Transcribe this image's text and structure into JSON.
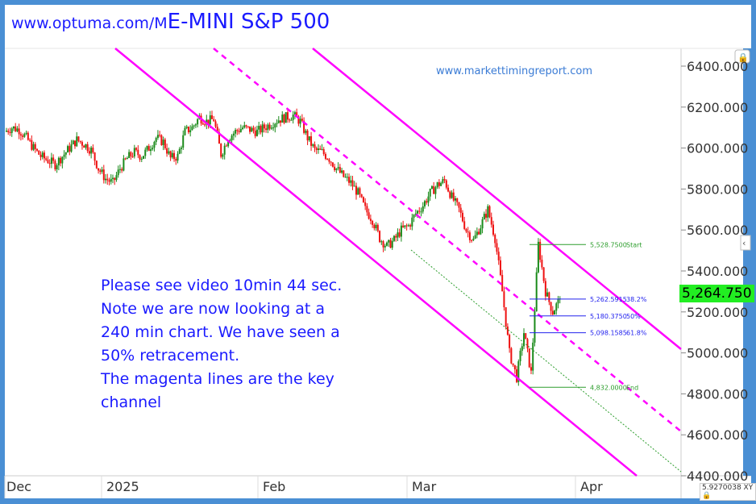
{
  "header": {
    "url": "www.optuma.com/M",
    "title": "E-MINI S&P 500"
  },
  "watermark": "www.markettimingreport.com",
  "note": [
    "Please see video 10min 44 sec.",
    "Note we are now looking at a",
    "240 min chart. We have seen a",
    "50% retracement.",
    "The magenta lines are the key",
    "channel"
  ],
  "current_price": "5,264.750",
  "coord_readout": "5.9270038",
  "coord_mode": "XY",
  "chart_data": {
    "type": "candlestick",
    "y_ticks": [
      "6400.000",
      "6200.000",
      "6000.000",
      "5800.000",
      "5600.000",
      "5400.000",
      "5200.000",
      "5000.000",
      "4800.000",
      "4600.000",
      "4400.000"
    ],
    "ylim": [
      4400,
      6400
    ],
    "x_ticks": [
      "Dec",
      "2025",
      "Feb",
      "Mar",
      "Apr"
    ],
    "closes": [
      6080,
      6100,
      6090,
      6050,
      6000,
      5960,
      5940,
      5920,
      5960,
      6000,
      6040,
      6020,
      5990,
      5900,
      5850,
      5830,
      5900,
      5950,
      5980,
      5960,
      6000,
      6050,
      6030,
      5950,
      5960,
      6080,
      6100,
      6150,
      6130,
      6140,
      5970,
      6050,
      6080,
      6100,
      6090,
      6080,
      6100,
      6120,
      6140,
      6150,
      6160,
      6130,
      6050,
      5990,
      5980,
      5950,
      5900,
      5860,
      5830,
      5780,
      5700,
      5650,
      5560,
      5520,
      5550,
      5600,
      5620,
      5680,
      5720,
      5780,
      5820,
      5840,
      5760,
      5700,
      5600,
      5550,
      5620,
      5700,
      5560,
      5300,
      5000,
      4880,
      5100,
      4900,
      5530,
      5300,
      5200,
      5265
    ],
    "fibonacci": [
      {
        "value": "5,528.7500",
        "label": "Start",
        "color": "#2e9e2e"
      },
      {
        "value": "5,262.5915",
        "label": "38.2%",
        "color": "#2222ee"
      },
      {
        "value": "5,180.3750",
        "label": "50%",
        "color": "#2222ee"
      },
      {
        "value": "5,098.1585",
        "label": "61.8%",
        "color": "#2222ee"
      },
      {
        "value": "4,832.0000",
        "label": "End",
        "color": "#2e9e2e"
      }
    ],
    "colors": {
      "up": "#1a8a1a",
      "down": "#ee1111",
      "channel": "#ff00ff"
    }
  }
}
